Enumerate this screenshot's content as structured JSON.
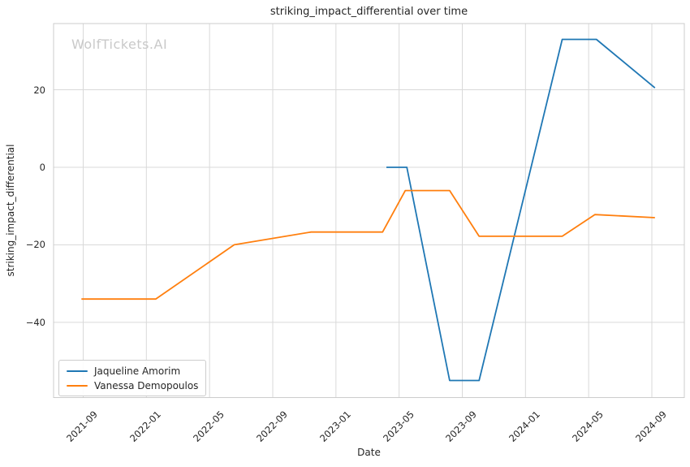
{
  "title": "striking_impact_differential over time",
  "watermark": "WolfTickets.AI",
  "axes": {
    "x_label": "Date",
    "y_label": "striking_impact_differential",
    "x_ticks": [
      "2021-09",
      "2022-01",
      "2022-05",
      "2022-09",
      "2023-01",
      "2023-05",
      "2023-09",
      "2024-01",
      "2024-05",
      "2024-09"
    ],
    "y_ticks": [
      {
        "label": "20",
        "value": 20
      },
      {
        "label": "0",
        "value": 0
      },
      {
        "label": "−20",
        "value": -20
      },
      {
        "label": "−40",
        "value": -40
      }
    ]
  },
  "legend": {
    "entries": [
      {
        "label": "Jaqueline Amorim",
        "color": "#1f77b4"
      },
      {
        "label": "Vanessa Demopoulos",
        "color": "#ff7f0e"
      }
    ]
  },
  "chart_data": {
    "type": "line",
    "title": "striking_impact_differential over time",
    "xlabel": "Date",
    "ylabel": "striking_impact_differential",
    "grid": true,
    "legend_position": "lower left",
    "xlim": [
      "2021-07-04",
      "2024-11-02"
    ],
    "ylim": [
      -59.4,
      37.0
    ],
    "x_tick_labels": [
      "2021-09",
      "2022-01",
      "2022-05",
      "2022-09",
      "2023-01",
      "2023-05",
      "2023-09",
      "2024-01",
      "2024-05",
      "2024-09"
    ],
    "y_tick_values": [
      -40,
      -20,
      0,
      20
    ],
    "series": [
      {
        "name": "Jaqueline Amorim",
        "color": "#1f77b4",
        "points": [
          [
            "2023-04-07",
            0
          ],
          [
            "2023-05-16",
            0
          ],
          [
            "2023-08-07",
            -55
          ],
          [
            "2023-10-03",
            -55
          ],
          [
            "2024-03-11",
            33
          ],
          [
            "2024-05-16",
            33
          ],
          [
            "2024-09-07",
            20.5
          ]
        ]
      },
      {
        "name": "Vanessa Demopoulos",
        "color": "#ff7f0e",
        "points": [
          [
            "2021-08-28",
            -34
          ],
          [
            "2022-01-19",
            -34
          ],
          [
            "2022-06-18",
            -20
          ],
          [
            "2022-11-14",
            -16.7
          ],
          [
            "2023-03-30",
            -16.7
          ],
          [
            "2023-05-13",
            -6
          ],
          [
            "2023-08-07",
            -6
          ],
          [
            "2023-10-03",
            -17.8
          ],
          [
            "2024-03-11",
            -17.8
          ],
          [
            "2024-05-13",
            -12.2
          ],
          [
            "2024-09-07",
            -13
          ]
        ]
      }
    ]
  },
  "colors": {
    "background": "#ffffff",
    "grid": "#d9d9d9",
    "spine": "#cccccc",
    "text": "#262626",
    "watermark": "#c9c9c9",
    "series_1": "#1f77b4",
    "series_2": "#ff7f0e"
  }
}
